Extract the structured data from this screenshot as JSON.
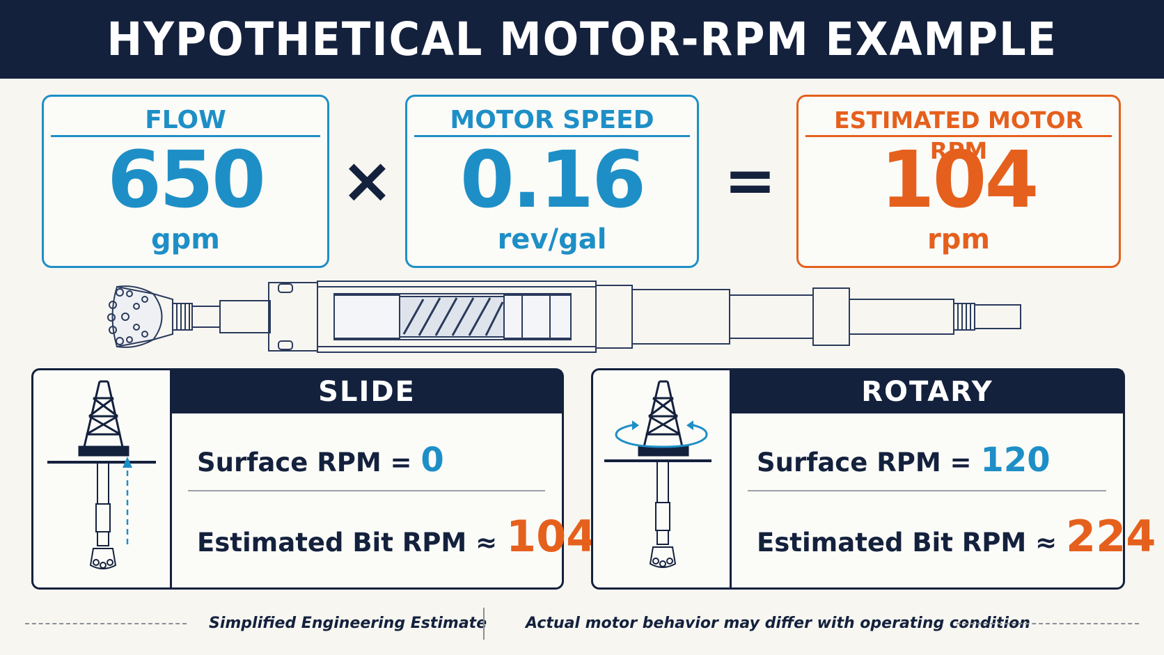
{
  "header": {
    "title": "HYPOTHETICAL MOTOR-RPM EXAMPLE"
  },
  "equation": {
    "flow": {
      "label": "FLOW",
      "value": "650",
      "unit": "gpm"
    },
    "operator_multiply": "×",
    "motor_speed": {
      "label": "MOTOR SPEED",
      "value": "0.16",
      "unit": "rev/gal"
    },
    "operator_equals": "=",
    "result": {
      "label": "ESTIMATED MOTOR RPM",
      "value": "104",
      "unit": "rpm"
    }
  },
  "modes": {
    "slide": {
      "title": "SLIDE",
      "surface_label": "Surface RPM =",
      "surface_value": "0",
      "bit_label": "Estimated Bit RPM ≈",
      "bit_value": "104"
    },
    "rotary": {
      "title": "ROTARY",
      "surface_label": "Surface RPM =",
      "surface_value": "120",
      "bit_label": "Estimated Bit RPM ≈",
      "bit_value": "224"
    }
  },
  "footer": {
    "left": "Simplified Engineering Estimate",
    "right": "Actual motor behavior may differ with operating condition"
  },
  "colors": {
    "navy": "#14213d",
    "blue": "#1e8fc6",
    "orange": "#e5601d"
  },
  "icons": [
    "drill-bit-icon",
    "mud-motor-icon",
    "drilling-rig-icon",
    "rotation-arrows-icon",
    "upward-arrow-icon"
  ]
}
